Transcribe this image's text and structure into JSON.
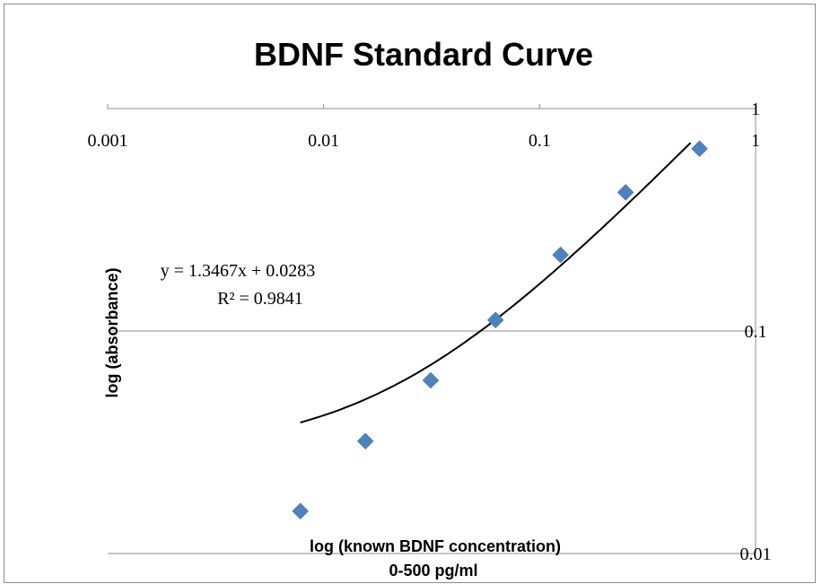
{
  "chart_data": {
    "type": "scatter",
    "title": "BDNF Standard Curve",
    "xlabel": "log (known BDNF concentration)",
    "xlabel_sub": "0-500 pg/ml",
    "ylabel": "log (absorbance)",
    "x_scale": "log",
    "y_scale": "log",
    "xlim": [
      0.001,
      1
    ],
    "ylim": [
      0.01,
      1
    ],
    "x_ticks": [
      "0.001",
      "0.01",
      "0.1",
      "1"
    ],
    "y_ticks": [
      "0.01",
      "0.1",
      "1"
    ],
    "grid": "horizontal major",
    "marker_color": "#4f81bd",
    "trendline_color": "#000000",
    "series": [
      {
        "x": [
          0.0078,
          0.0156,
          0.0313,
          0.0625,
          0.125,
          0.25,
          0.55
        ],
        "y": [
          0.0155,
          0.032,
          0.06,
          0.112,
          0.22,
          0.42,
          0.66
        ]
      }
    ],
    "trendline": {
      "equation": "y = 1.3467x + 0.0283",
      "r_squared": "R² = 0.9841",
      "slope": 1.3467,
      "intercept": 0.0283,
      "x_range": [
        0.0078,
        0.5
      ]
    }
  }
}
